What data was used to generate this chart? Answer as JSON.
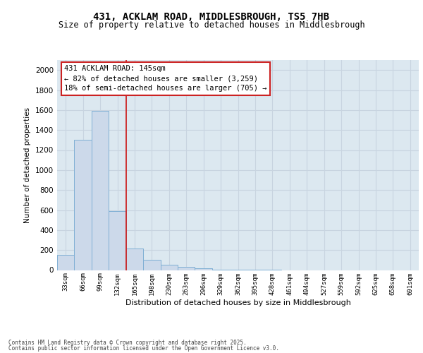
{
  "title_line1": "431, ACKLAM ROAD, MIDDLESBROUGH, TS5 7HB",
  "title_line2": "Size of property relative to detached houses in Middlesbrough",
  "xlabel": "Distribution of detached houses by size in Middlesbrough",
  "ylabel": "Number of detached properties",
  "categories": [
    "33sqm",
    "66sqm",
    "99sqm",
    "132sqm",
    "165sqm",
    "198sqm",
    "230sqm",
    "263sqm",
    "296sqm",
    "329sqm",
    "362sqm",
    "395sqm",
    "428sqm",
    "461sqm",
    "494sqm",
    "527sqm",
    "559sqm",
    "592sqm",
    "625sqm",
    "658sqm",
    "691sqm"
  ],
  "values": [
    150,
    1300,
    1590,
    590,
    215,
    100,
    55,
    30,
    15,
    5,
    3,
    2,
    1,
    0,
    0,
    0,
    0,
    0,
    0,
    0,
    0
  ],
  "bar_color": "#ccd9ea",
  "bar_edge_color": "#7fafd4",
  "vline_x": 3.5,
  "vline_color": "#cc2222",
  "annotation_title": "431 ACKLAM ROAD: 145sqm",
  "annotation_line1": "← 82% of detached houses are smaller (3,259)",
  "annotation_line2": "18% of semi-detached houses are larger (705) →",
  "ylim": [
    0,
    2100
  ],
  "yticks": [
    0,
    200,
    400,
    600,
    800,
    1000,
    1200,
    1400,
    1600,
    1800,
    2000
  ],
  "grid_color": "#c8d4e0",
  "bg_color": "#dce8f0",
  "footnote1": "Contains HM Land Registry data © Crown copyright and database right 2025.",
  "footnote2": "Contains public sector information licensed under the Open Government Licence v3.0."
}
